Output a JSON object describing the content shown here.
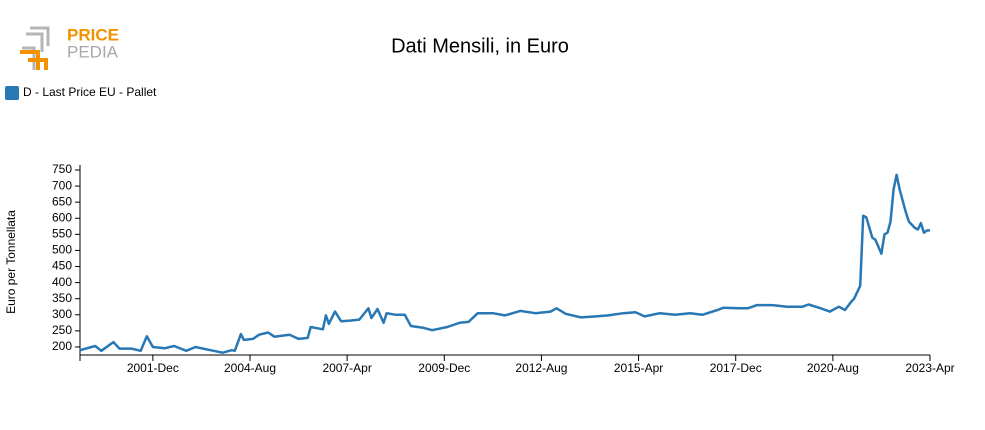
{
  "logo": {
    "top": "PRICE",
    "bottom": "PEDIA"
  },
  "chart_data": {
    "type": "line",
    "title": "Dati Mensili, in Euro",
    "ylabel": "Euro per Tonnellata",
    "x": [
      "1999-Dec",
      "2000-May",
      "2000-Jul",
      "2000-Nov",
      "2001-Jan",
      "2001-May",
      "2001-Aug",
      "2001-Oct",
      "2001-Dec",
      "2002-Apr",
      "2002-Jul",
      "2002-Nov",
      "2003-Feb",
      "2003-Jul",
      "2003-Nov",
      "2004-Feb",
      "2004-Mar",
      "2004-May",
      "2004-Jun",
      "2004-Sep",
      "2004-Nov",
      "2005-Feb",
      "2005-Apr",
      "2005-Sep",
      "2005-Dec",
      "2006-Mar",
      "2006-Apr",
      "2006-Aug",
      "2006-Sep",
      "2006-Oct",
      "2006-Dec",
      "2007-Feb",
      "2007-May",
      "2007-Aug",
      "2007-Nov",
      "2007-Dec",
      "2008-Feb",
      "2008-Apr",
      "2008-May",
      "2008-Aug",
      "2008-Nov",
      "2009-Jan",
      "2009-May",
      "2009-Aug",
      "2010-Jan",
      "2010-May",
      "2010-Aug",
      "2010-Nov",
      "2011-Apr",
      "2011-Aug",
      "2012-Jan",
      "2012-Jun",
      "2012-Nov",
      "2013-Jan",
      "2013-Apr",
      "2013-Sep",
      "2014-Feb",
      "2014-Jun",
      "2014-Nov",
      "2015-Mar",
      "2015-Jun",
      "2015-Nov",
      "2016-Apr",
      "2016-Sep",
      "2017-Jan",
      "2017-Jun",
      "2017-Aug",
      "2018-Jan",
      "2018-Apr",
      "2018-Jul",
      "2018-Dec",
      "2019-May",
      "2019-Oct",
      "2019-Dec",
      "2020-Apr",
      "2020-Jul",
      "2020-Oct",
      "2020-Dec",
      "2021-Feb",
      "2021-Mar",
      "2021-May",
      "2021-Jun",
      "2021-Jul",
      "2021-Sep",
      "2021-Oct",
      "2021-Dec",
      "2022-Jan",
      "2022-Feb",
      "2022-Mar",
      "2022-Apr",
      "2022-May",
      "2022-Jun",
      "2022-Aug",
      "2022-Sep",
      "2022-Nov",
      "2022-Dec",
      "2023-Jan",
      "2023-Feb",
      "2023-Mar",
      "2023-Apr"
    ],
    "series": [
      {
        "name": "D - Last Price EU - Pallet",
        "color": "#2878b5",
        "values": [
          190,
          203,
          188,
          215,
          195,
          195,
          188,
          233,
          200,
          196,
          203,
          188,
          200,
          190,
          182,
          190,
          188,
          240,
          222,
          225,
          238,
          245,
          232,
          238,
          225,
          228,
          262,
          255,
          298,
          272,
          310,
          280,
          282,
          285,
          320,
          290,
          318,
          275,
          305,
          300,
          300,
          265,
          260,
          252,
          262,
          275,
          278,
          305,
          305,
          298,
          312,
          305,
          310,
          320,
          303,
          292,
          295,
          298,
          305,
          308,
          295,
          305,
          300,
          305,
          300,
          315,
          322,
          320,
          320,
          330,
          330,
          325,
          325,
          332,
          320,
          310,
          325,
          315,
          340,
          350,
          390,
          608,
          603,
          540,
          533,
          490,
          550,
          555,
          590,
          690,
          735,
          690,
          620,
          590,
          570,
          565,
          585,
          555,
          562,
          563
        ]
      }
    ],
    "xlim": [
      "1999-Dec",
      "2023-Apr"
    ],
    "xticks": [
      "2001-Dec",
      "2004-Aug",
      "2007-Apr",
      "2009-Dec",
      "2012-Aug",
      "2015-Apr",
      "2017-Dec",
      "2020-Aug",
      "2023-Apr"
    ],
    "ylim": [
      175,
      750
    ],
    "yticks": [
      200,
      250,
      300,
      350,
      400,
      450,
      500,
      550,
      600,
      650,
      700,
      750
    ],
    "legend": "top-left",
    "grid": false
  }
}
